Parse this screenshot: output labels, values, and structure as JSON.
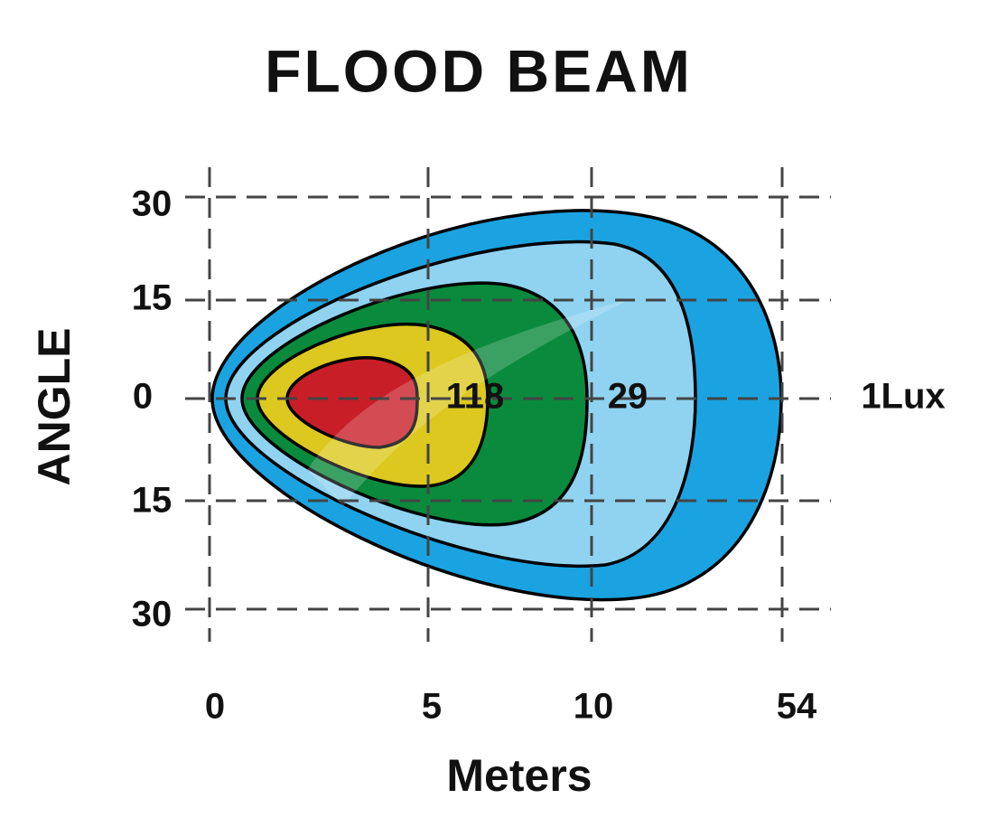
{
  "title": "FLOOD BEAM",
  "y_axis": {
    "title": "ANGLE",
    "labels": [
      "30",
      "15",
      "0",
      "15",
      "30"
    ]
  },
  "x_axis": {
    "title": "Meters",
    "labels": [
      "0",
      "5",
      "10",
      "54"
    ]
  },
  "contour_labels": [
    "118",
    "29",
    "1Lux"
  ]
}
